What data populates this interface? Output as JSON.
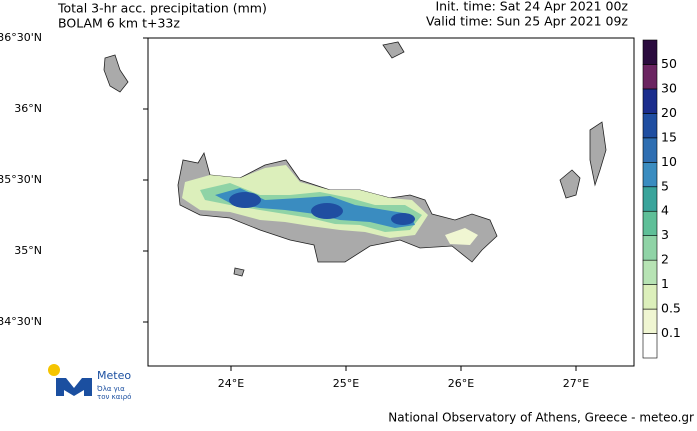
{
  "header": {
    "title": "Total 3-hr acc. precipitation (mm)",
    "subtitle": "BOLAM 6 km t+33z",
    "init_time": "Init. time: Sat 24 Apr 2021 00z",
    "valid_time": "Valid time: Sun 25 Apr 2021 09z"
  },
  "map": {
    "lat_labels": [
      "36°30'N",
      "36°N",
      "35°30'N",
      "35°N",
      "34°30'N"
    ],
    "lon_labels": [
      "24°E",
      "25°E",
      "26°E",
      "27°E"
    ]
  },
  "colorbar": {
    "levels": [
      0.1,
      0.5,
      1,
      2,
      3,
      4,
      5,
      10,
      15,
      20,
      30,
      50
    ],
    "colors": [
      "#ffffff",
      "#f0f6d2",
      "#dcefbb",
      "#b7e3b4",
      "#8fd3a6",
      "#5fbf98",
      "#3aa49b",
      "#3a8cc0",
      "#2e6eb2",
      "#1f4ea1",
      "#1b2d8c",
      "#6b2461",
      "#2b0b3e"
    ]
  },
  "logo": {
    "name": "Meteo",
    "tagline_1": "Όλα για",
    "tagline_2": "τον καιρό"
  },
  "footer": {
    "credit": "National Observatory of Athens, Greece - meteo.gr"
  }
}
